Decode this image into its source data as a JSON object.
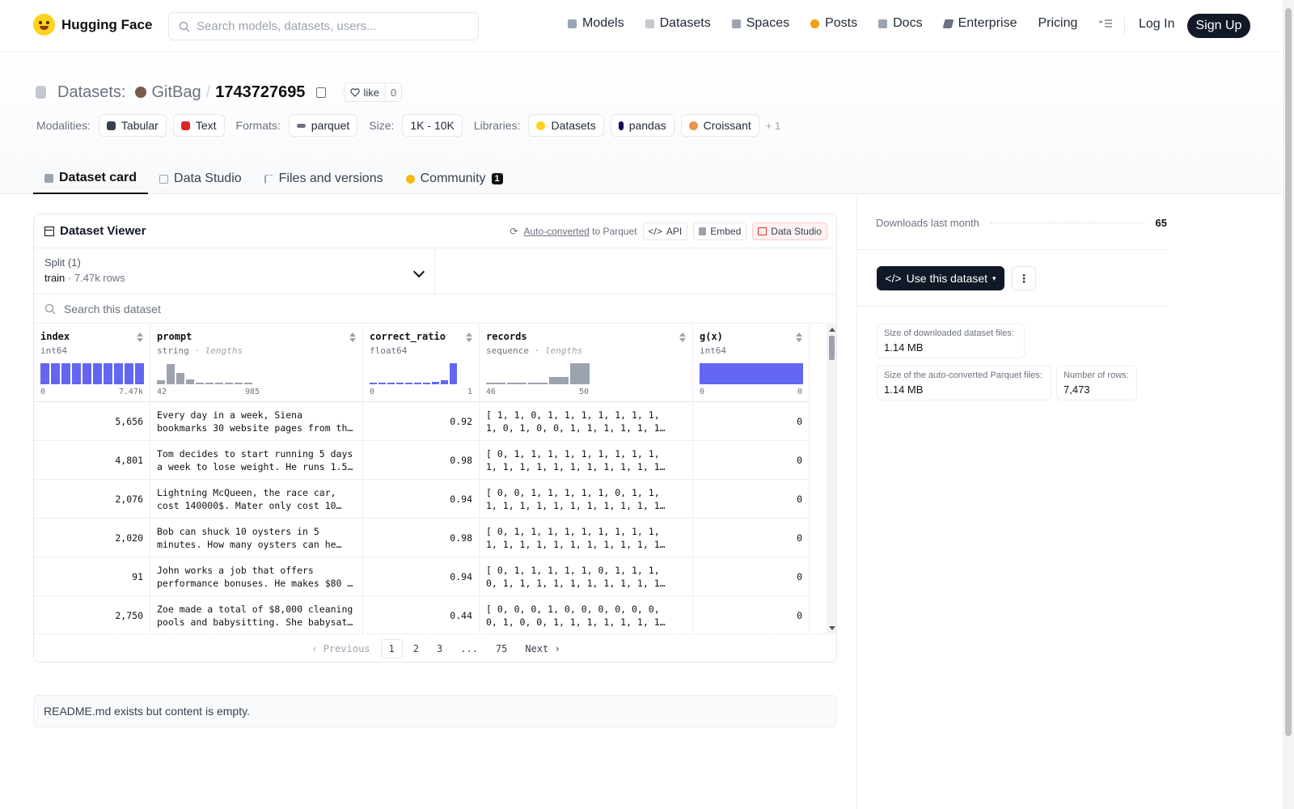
{
  "header": {
    "brand": "Hugging Face",
    "search_placeholder": "Search models, datasets, users...",
    "nav": [
      {
        "label": "Models",
        "icon": "models-icon",
        "color": "#9aa4b2"
      },
      {
        "label": "Datasets",
        "icon": "datasets-icon",
        "color": "#c4c9d1"
      },
      {
        "label": "Spaces",
        "icon": "spaces-icon",
        "color": "#9aa4b2"
      },
      {
        "label": "Posts",
        "icon": "posts-icon",
        "color": "#f59e0b"
      },
      {
        "label": "Docs",
        "icon": "docs-icon",
        "color": "#9aa4b2"
      },
      {
        "label": "Enterprise",
        "icon": "enterprise-icon",
        "color": "#6b7280"
      },
      {
        "label": "Pricing",
        "icon": "",
        "color": ""
      }
    ],
    "login": "Log In",
    "signup": "Sign Up"
  },
  "repo": {
    "type_label": "Datasets:",
    "owner": "GitBag",
    "separator": "/",
    "name": "1743727695",
    "like_label": "like",
    "like_count": "0"
  },
  "meta": {
    "modalities_label": "Modalities:",
    "modalities": [
      "Tabular",
      "Text"
    ],
    "formats_label": "Formats:",
    "formats": [
      "parquet"
    ],
    "size_label": "Size:",
    "size": "1K - 10K",
    "libraries_label": "Libraries:",
    "libraries": [
      "Datasets",
      "pandas",
      "Croissant"
    ],
    "libraries_more": "+ 1"
  },
  "tabs": [
    {
      "label": "Dataset card",
      "active": true
    },
    {
      "label": "Data Studio",
      "active": false
    },
    {
      "label": "Files and versions",
      "active": false
    },
    {
      "label": "Community",
      "active": false,
      "badge": "1"
    }
  ],
  "viewer": {
    "title": "Dataset Viewer",
    "auto_converted": "Auto-converted",
    "to_parquet": "to Parquet",
    "api": "API",
    "embed": "Embed",
    "data_studio": "Data Studio",
    "split_label": "Split (1)",
    "split_name": "train",
    "split_sep": "·",
    "split_rows": "7.47k rows",
    "search_placeholder": "Search this dataset",
    "columns": [
      {
        "name": "index",
        "type": "int64",
        "extra": "",
        "min": "0",
        "max": "7.47k"
      },
      {
        "name": "prompt",
        "type": "string",
        "extra": "· lengths",
        "min": "42",
        "max": "985"
      },
      {
        "name": "correct_ratio",
        "type": "float64",
        "extra": "",
        "min": "0",
        "max": "1"
      },
      {
        "name": "records",
        "type": "sequence",
        "extra": "· lengths",
        "min": "46",
        "max": "50"
      },
      {
        "name": "g(x)",
        "type": "int64",
        "extra": "",
        "min": "0",
        "max": "0"
      }
    ],
    "rows": [
      {
        "index": "5,656",
        "prompt1": "Every day in a week, Siena",
        "prompt2": "bookmarks 30 website pages from th…",
        "ratio": "0.92",
        "rec1": "[ 1, 1, 0, 1, 1, 1, 1, 1, 1, 1,",
        "rec2": "1, 0, 1, 0, 0, 1, 1, 1, 1, 1, 1…",
        "gx": "0"
      },
      {
        "index": "4,801",
        "prompt1": "Tom decides to start running 5 days",
        "prompt2": "a week to lose weight. He runs 1.5…",
        "ratio": "0.98",
        "rec1": "[ 0, 1, 1, 1, 1, 1, 1, 1, 1, 1,",
        "rec2": "1, 1, 1, 1, 1, 1, 1, 1, 1, 1, 1…",
        "gx": "0"
      },
      {
        "index": "2,076",
        "prompt1": "Lightning McQueen, the race car,",
        "prompt2": "cost 140000$. Mater only cost 10…",
        "ratio": "0.94",
        "rec1": "[ 0, 0, 1, 1, 1, 1, 1, 0, 1, 1,",
        "rec2": "1, 1, 1, 1, 1, 1, 1, 1, 1, 1, 1…",
        "gx": "0"
      },
      {
        "index": "2,020",
        "prompt1": "Bob can shuck 10 oysters in 5",
        "prompt2": "minutes. How many oysters can he…",
        "ratio": "0.98",
        "rec1": "[ 0, 1, 1, 1, 1, 1, 1, 1, 1, 1,",
        "rec2": "1, 1, 1, 1, 1, 1, 1, 1, 1, 1, 1…",
        "gx": "0"
      },
      {
        "index": "91",
        "prompt1": "John works a job that offers",
        "prompt2": "performance bonuses. He makes $80 …",
        "ratio": "0.94",
        "rec1": "[ 0, 1, 1, 1, 1, 1, 0, 1, 1, 1,",
        "rec2": "0, 1, 1, 1, 1, 1, 1, 1, 1, 1, 1…",
        "gx": "0"
      },
      {
        "index": "2,750",
        "prompt1": "Zoe made a total of $8,000 cleaning",
        "prompt2": "pools and babysitting. She babysat…",
        "ratio": "0.44",
        "rec1": "[ 0, 0, 0, 1, 0, 0, 0, 0, 0, 0,",
        "rec2": "0, 1, 0, 0, 1, 1, 1, 1, 1, 1, 1…",
        "gx": "0"
      }
    ],
    "pager": {
      "prev": "Previous",
      "pages": [
        "1",
        "2",
        "3",
        "...",
        "75"
      ],
      "next": "Next"
    }
  },
  "histograms": {
    "index": [
      1,
      1,
      1,
      1,
      1,
      1,
      1,
      1,
      1,
      1
    ],
    "prompt": [
      0.2,
      0.95,
      0.55,
      0.22,
      0.08,
      0.04,
      0.03,
      0.02,
      0.02,
      0.01
    ],
    "correct_ratio": [
      0.03,
      0.03,
      0.03,
      0.03,
      0.04,
      0.05,
      0.07,
      0.1,
      0.2,
      1
    ],
    "records": [
      0.04,
      0.05,
      0.08,
      0.35,
      1
    ],
    "gx": [
      1
    ]
  },
  "readme": "README.md exists but content is empty.",
  "sidebar": {
    "downloads_label": "Downloads last month",
    "downloads_value": "65",
    "use_dataset": "Use this dataset",
    "more": "⋮",
    "size_dl_label": "Size of downloaded dataset files:",
    "size_dl_value": "1.14 MB",
    "size_parquet_label": "Size of the auto-converted Parquet files:",
    "size_parquet_value": "1.14 MB",
    "rows_label": "Number of rows:",
    "rows_value": "7,473"
  },
  "colors": {
    "accent_bar": "#6366f1",
    "grey_bar": "#9ca3af",
    "dark": "#111827"
  }
}
